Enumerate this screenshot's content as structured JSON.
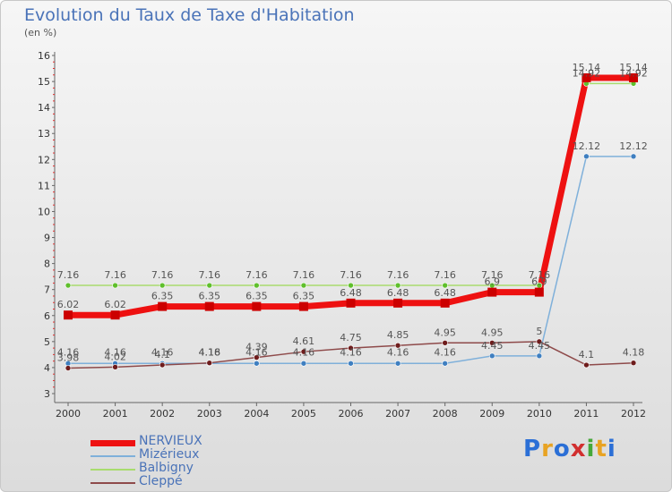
{
  "title": "Evolution du Taux de Taxe d'Habitation",
  "unit_label": "(en %)",
  "logo": {
    "letters": [
      "P",
      "r",
      "o",
      "x",
      "i",
      "t",
      "i"
    ],
    "colors": [
      "#2b6fd6",
      "#e8a323",
      "#2b6fd6",
      "#d12f2f",
      "#46a83a",
      "#e8a323",
      "#2b6fd6"
    ]
  },
  "chart_data": {
    "type": "line",
    "title": "Evolution du Taux de Taxe d'Habitation",
    "ylabel": "(en %)",
    "xlabel": "",
    "x": [
      "2000",
      "2001",
      "2002",
      "2003",
      "2004",
      "2005",
      "2006",
      "2007",
      "2008",
      "2009",
      "2010",
      "2011",
      "2012"
    ],
    "ylim": [
      3,
      16
    ],
    "yticks": [
      "3",
      "4",
      "5",
      "6",
      "7",
      "8",
      "9",
      "10",
      "11",
      "12",
      "13",
      "14",
      "15",
      "16"
    ],
    "grid": false,
    "legend_position": "bottom-left",
    "series": [
      {
        "name": "NERVIEUX",
        "color": "#ee1111",
        "marker_color": "#cc0000",
        "width": 7,
        "values": [
          6.02,
          6.02,
          6.35,
          6.35,
          6.35,
          6.35,
          6.48,
          6.48,
          6.48,
          6.9,
          6.9,
          15.14,
          15.14
        ],
        "labels": [
          "6.02",
          "6.02",
          "6.35",
          "6.35",
          "6.35",
          "6.35",
          "6.48",
          "6.48",
          "6.48",
          "6.9",
          "6.9",
          "15.14",
          "15.14"
        ]
      },
      {
        "name": "Mizérieux",
        "color": "#7fb0da",
        "marker_color": "#3f7fc0",
        "width": 1.5,
        "values": [
          4.16,
          4.16,
          4.16,
          4.16,
          4.16,
          4.16,
          4.16,
          4.16,
          4.16,
          4.45,
          4.45,
          12.12,
          12.12
        ],
        "labels": [
          "4.16",
          "4.16",
          "4.16",
          "4.16",
          "4.16",
          "4.16",
          "4.16",
          "4.16",
          "4.16",
          "4.45",
          "4.45",
          "12.12",
          "12.12"
        ]
      },
      {
        "name": "Balbigny",
        "color": "#a8dc6e",
        "marker_color": "#5fbf2c",
        "width": 1.5,
        "values": [
          7.16,
          7.16,
          7.16,
          7.16,
          7.16,
          7.16,
          7.16,
          7.16,
          7.16,
          7.16,
          7.16,
          14.92,
          14.92
        ],
        "labels": [
          "7.16",
          "7.16",
          "7.16",
          "7.16",
          "7.16",
          "7.16",
          "7.16",
          "7.16",
          "7.16",
          "7.16",
          "7.16",
          "14.92",
          "14.92"
        ]
      },
      {
        "name": "Cleppé",
        "color": "#8e4a4a",
        "marker_color": "#6e1c1c",
        "width": 1.5,
        "values": [
          3.98,
          4.02,
          4.1,
          4.18,
          4.39,
          4.61,
          4.75,
          4.85,
          4.95,
          4.95,
          5,
          4.1,
          4.18
        ],
        "labels": [
          "3.98",
          "4.02",
          "4.1",
          "4.18",
          "4.39",
          "4.61",
          "4.75",
          "4.85",
          "4.95",
          "4.95",
          "5",
          "4.1",
          "4.18"
        ]
      }
    ]
  }
}
